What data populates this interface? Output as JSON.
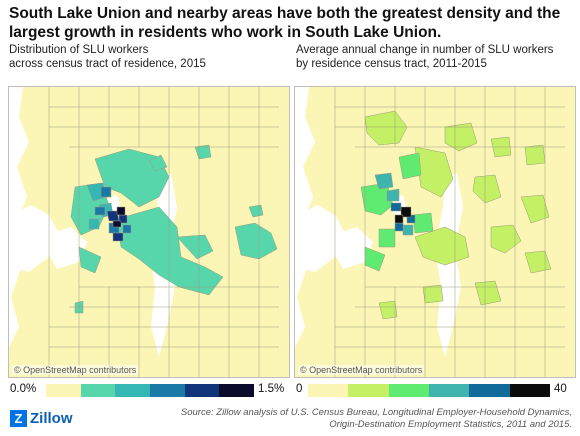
{
  "headline": "South Lake Union and nearby areas have both the greatest density and the largest growth in residents who work in South Lake Union.",
  "left_map": {
    "subtitle_line1": "Distribution of SLU workers",
    "subtitle_line2": "across census tract of residence, 2015",
    "attribution": "© OpenStreetMap contributors",
    "legend_min": "0.0%",
    "legend_max": "1.5%",
    "legend_colors": [
      "#fbf6b6",
      "#57d6ac",
      "#35b7b4",
      "#1b79a8",
      "#12347a",
      "#0a0a2c"
    ]
  },
  "right_map": {
    "subtitle_line1": "Average annual change in number of SLU workers",
    "subtitle_line2": "by residence census tract, 2011-2015",
    "attribution": "© OpenStreetMap contributors",
    "legend_min": "0",
    "legend_max": "40",
    "legend_colors": [
      "#fbf6b6",
      "#c3f065",
      "#5fea71",
      "#3fb3ad",
      "#106a9a",
      "#0b0b0b"
    ]
  },
  "colors": {
    "base": "#fbf6b6",
    "water": "#ffffff",
    "tract_border": "#9c9a7c"
  },
  "footer": {
    "logo_mark": "Z",
    "logo_text": "Zillow",
    "source_line1": "Source: Zillow analysis of U.S. Census Bureau, Longitudinal Employer-Household Dynamics,",
    "source_line2": "Origin-Destination Employment Statistics, 2011 and 2015."
  }
}
